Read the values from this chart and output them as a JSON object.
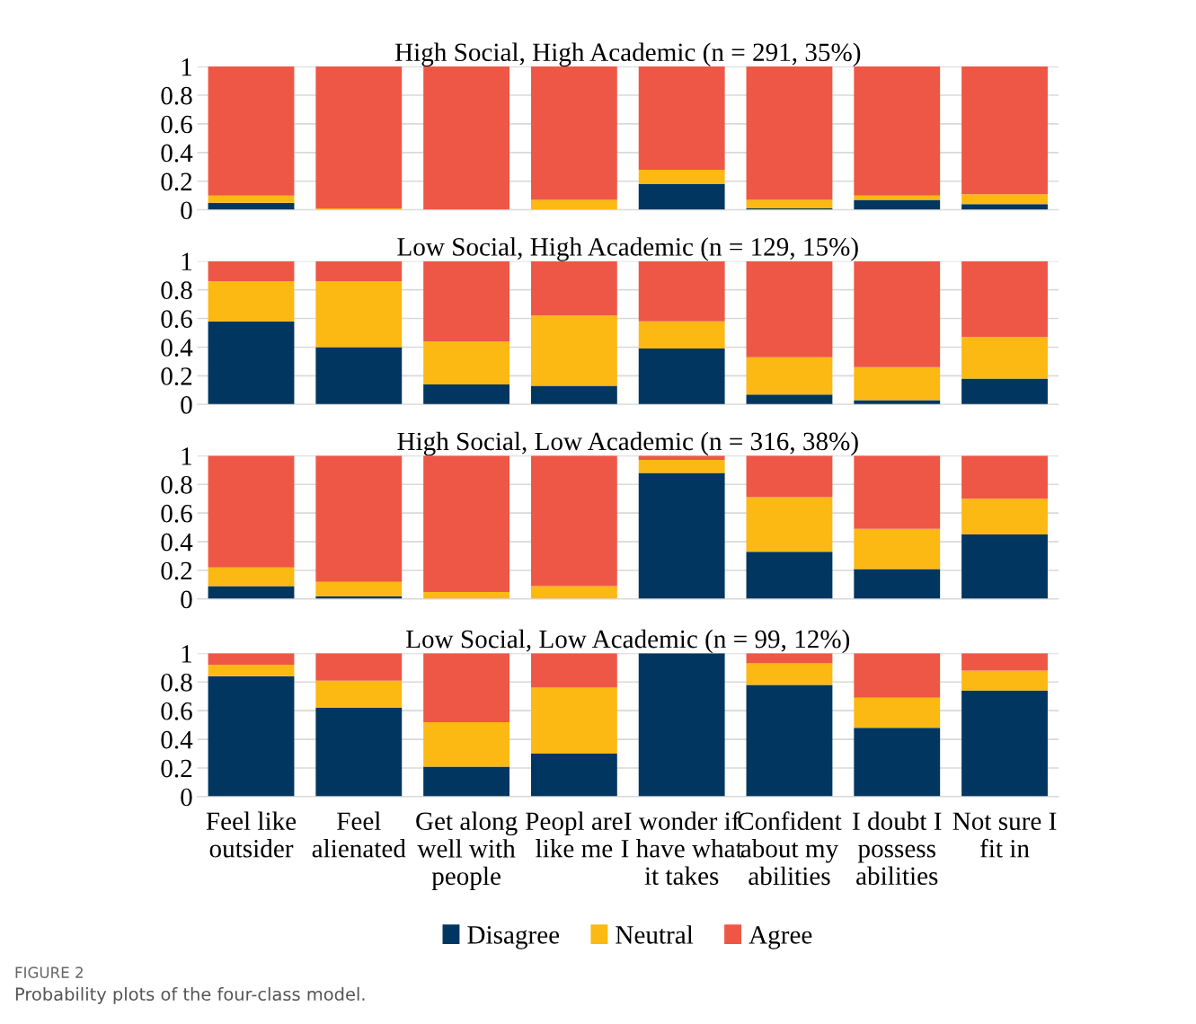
{
  "chart_data": [
    {
      "type": "bar",
      "stacked": true,
      "title": "High Social, High Academic (n = 291, 35%)",
      "categories": [
        null,
        null,
        null,
        null,
        null,
        null,
        null,
        null
      ],
      "ylim": [
        0,
        1
      ],
      "yticks": [
        0,
        0.2,
        0.4,
        0.6,
        0.8,
        1
      ],
      "grid": "y",
      "tick_labels": "y",
      "series": [
        {
          "color": "#003660",
          "values": [
            0.05,
            0,
            0,
            0,
            0.18,
            0.01,
            0.07,
            0.04
          ]
        },
        {
          "color": "#fcb813",
          "values": [
            0.05,
            0.01,
            0,
            0.07,
            0.1,
            0.06,
            0.03,
            0.07
          ]
        },
        {
          "color": "#ee5746",
          "values": [
            0.9,
            0.99,
            1.0,
            0.93,
            0.72,
            0.93,
            0.9,
            0.89
          ]
        }
      ]
    },
    {
      "type": "bar",
      "stacked": true,
      "title": "Low Social, High Academic (n = 129, 15%)",
      "categories": [
        null,
        null,
        null,
        null,
        null,
        null,
        null,
        null
      ],
      "ylim": [
        0,
        1
      ],
      "yticks": [
        0,
        0.2,
        0.4,
        0.6,
        0.8,
        1
      ],
      "grid": "y",
      "tick_labels": "y",
      "series": [
        {
          "color": "#003660",
          "values": [
            0.58,
            0.4,
            0.14,
            0.13,
            0.39,
            0.07,
            0.03,
            0.18
          ]
        },
        {
          "color": "#fcb813",
          "values": [
            0.28,
            0.46,
            0.3,
            0.49,
            0.19,
            0.26,
            0.23,
            0.29
          ]
        },
        {
          "color": "#ee5746",
          "values": [
            0.14,
            0.14,
            0.56,
            0.38,
            0.42,
            0.67,
            0.74,
            0.53
          ]
        }
      ]
    },
    {
      "type": "bar",
      "stacked": true,
      "title": "High Social, Low Academic (n = 316, 38%)",
      "categories": [
        null,
        null,
        null,
        null,
        null,
        null,
        null,
        null
      ],
      "ylim": [
        0,
        1
      ],
      "yticks": [
        0,
        0.2,
        0.4,
        0.6,
        0.8,
        1
      ],
      "grid": "y",
      "tick_labels": "y",
      "series": [
        {
          "color": "#003660",
          "values": [
            0.09,
            0.02,
            0,
            0,
            0.88,
            0.33,
            0.21,
            0.45
          ]
        },
        {
          "color": "#fcb813",
          "values": [
            0.13,
            0.1,
            0.05,
            0.09,
            0.09,
            0.38,
            0.28,
            0.25
          ]
        },
        {
          "color": "#ee5746",
          "values": [
            0.78,
            0.88,
            0.95,
            0.91,
            0.03,
            0.29,
            0.51,
            0.3
          ]
        }
      ]
    },
    {
      "type": "bar",
      "stacked": true,
      "title": "Low Social, Low Academic (n = 99, 12%)",
      "categories": [
        "Feel like\noutsider",
        "Feel\nalienated",
        "Get along\nwell with\npeople",
        "Peopl are\nlike me",
        "I wonder if\nI have what\nit takes",
        "Confident\nabout my\nabilities",
        "I doubt I\npossess\nabilities",
        "Not sure I\nfit in"
      ],
      "ylim": [
        0,
        1
      ],
      "yticks": [
        0,
        0.2,
        0.4,
        0.6,
        0.8,
        1
      ],
      "grid": "y",
      "legend": "bottom",
      "annotations": [
        "FIGURE 2",
        "Probability plots of the four-class model."
      ],
      "series": [
        {
          "name": "Disagree",
          "color": "#003660",
          "values": [
            0.84,
            0.62,
            0.21,
            0.3,
            1.0,
            0.78,
            0.48,
            0.74
          ]
        },
        {
          "name": "Neutral",
          "color": "#fcb813",
          "values": [
            0.08,
            0.19,
            0.31,
            0.46,
            0,
            0.15,
            0.21,
            0.14
          ]
        },
        {
          "name": "Agree",
          "color": "#ee5746",
          "values": [
            0.08,
            0.19,
            0.48,
            0.24,
            0,
            0.07,
            0.31,
            0.12
          ]
        }
      ]
    }
  ]
}
